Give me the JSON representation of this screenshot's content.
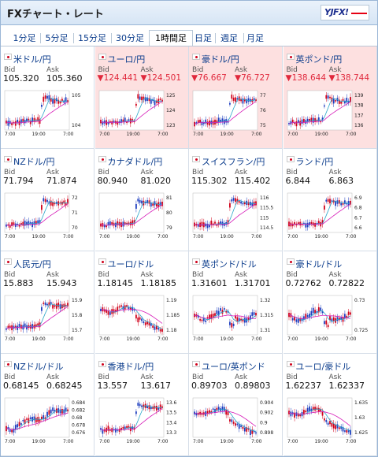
{
  "header": {
    "title": "FXチャート・レート",
    "logo_text": "YJFX!"
  },
  "tabs": [
    {
      "label": "1分足",
      "active": false
    },
    {
      "label": "5分足",
      "active": false
    },
    {
      "label": "15分足",
      "active": false
    },
    {
      "label": "30分足",
      "active": false
    },
    {
      "label": "1時間足",
      "active": true
    },
    {
      "label": "日足",
      "active": false
    },
    {
      "label": "週足",
      "active": false
    },
    {
      "label": "月足",
      "active": false
    }
  ],
  "labels": {
    "bid": "Bid",
    "ask": "Ask"
  },
  "colors": {
    "up": "#d0021b",
    "down": "#1f3fbf",
    "ma_short": "#2aa6c9",
    "ma_long": "#d61ab8",
    "highlight": "#fde0e0",
    "down_text": "#e0283c"
  },
  "pairs": [
    {
      "name": "米ドル/円",
      "bid": "105.320",
      "ask": "105.360",
      "change": "flat",
      "y_ticks": [
        "105",
        "104"
      ],
      "x_ticks": [
        "7:00",
        "19:00",
        "7:00"
      ],
      "shape": "jump"
    },
    {
      "name": "ユーロ/円",
      "bid": "▼124.441",
      "ask": "▼124.501",
      "change": "down",
      "y_ticks": [
        "125",
        "124",
        "123"
      ],
      "x_ticks": [
        "7:00",
        "19:00",
        "7:00"
      ],
      "shape": "jump"
    },
    {
      "name": "豪ドル/円",
      "bid": "▼76.667",
      "ask": "▼76.727",
      "change": "down",
      "y_ticks": [
        "77",
        "76",
        "75"
      ],
      "x_ticks": [
        "7:00",
        "19:00",
        "7:00"
      ],
      "shape": "jump"
    },
    {
      "name": "英ポンド/円",
      "bid": "▼138.644",
      "ask": "▼138.744",
      "change": "down",
      "y_ticks": [
        "139",
        "138",
        "137",
        "136"
      ],
      "x_ticks": [
        "7:00",
        "19:00",
        "7:00"
      ],
      "shape": "jump"
    },
    {
      "name": "NZドル/円",
      "bid": "71.794",
      "ask": "71.874",
      "change": "flat",
      "y_ticks": [
        "72",
        "71",
        "70"
      ],
      "x_ticks": [
        "7:00",
        "19:00",
        "7:00"
      ],
      "shape": "jump"
    },
    {
      "name": "カナダドル/円",
      "bid": "80.940",
      "ask": "81.020",
      "change": "flat",
      "y_ticks": [
        "81",
        "80",
        "79"
      ],
      "x_ticks": [
        "7:00",
        "19:00",
        "7:00"
      ],
      "shape": "jump"
    },
    {
      "name": "スイスフラン/円",
      "bid": "115.302",
      "ask": "115.402",
      "change": "flat",
      "y_ticks": [
        "116",
        "115.5",
        "115",
        "114.5"
      ],
      "x_ticks": [
        "7:00",
        "19:00",
        "7:00"
      ],
      "shape": "jump"
    },
    {
      "name": "ランド/円",
      "bid": "6.844",
      "ask": "6.863",
      "change": "flat",
      "y_ticks": [
        "6.9",
        "6.8",
        "6.7",
        "6.6"
      ],
      "x_ticks": [
        "7:00",
        "19:00",
        "7:00"
      ],
      "shape": "jump"
    },
    {
      "name": "人民元/円",
      "bid": "15.883",
      "ask": "15.943",
      "change": "flat",
      "y_ticks": [
        "15.9",
        "15.8",
        "15.7"
      ],
      "x_ticks": [
        "7:00",
        "19:00",
        "7:00"
      ],
      "shape": "jump"
    },
    {
      "name": "ユーロ/ドル",
      "bid": "1.18145",
      "ask": "1.18185",
      "change": "flat",
      "y_ticks": [
        "1.19",
        "1.185",
        "1.18"
      ],
      "x_ticks": [
        "7:00",
        "19:00",
        "7:00"
      ],
      "shape": "drop"
    },
    {
      "name": "英ポンド/ドル",
      "bid": "1.31601",
      "ask": "1.31701",
      "change": "flat",
      "y_ticks": [
        "1.32",
        "1.315",
        "1.31"
      ],
      "x_ticks": [
        "7:00",
        "19:00",
        "7:00"
      ],
      "shape": "range"
    },
    {
      "name": "豪ドル/ドル",
      "bid": "0.72762",
      "ask": "0.72822",
      "change": "flat",
      "y_ticks": [
        "0.73",
        "0.725"
      ],
      "x_ticks": [
        "7:00",
        "19:00",
        "7:00"
      ],
      "shape": "range"
    },
    {
      "name": "NZドル/ドル",
      "bid": "0.68145",
      "ask": "0.68245",
      "change": "flat",
      "y_ticks": [
        "0.684",
        "0.682",
        "0.68",
        "0.678",
        "0.676"
      ],
      "x_ticks": [
        "7:00",
        "19:00",
        "7:00"
      ],
      "shape": "rise"
    },
    {
      "name": "香港ドル/円",
      "bid": "13.557",
      "ask": "13.617",
      "change": "flat",
      "y_ticks": [
        "13.6",
        "13.5",
        "13.4",
        "13.3"
      ],
      "x_ticks": [
        "7:00",
        "19:00",
        "7:00"
      ],
      "shape": "jump"
    },
    {
      "name": "ユーロ/英ポンド",
      "bid": "0.89703",
      "ask": "0.89803",
      "change": "flat",
      "y_ticks": [
        "0.904",
        "0.902",
        "0.9",
        "0.898"
      ],
      "x_ticks": [
        "7:00",
        "19:00",
        "7:00"
      ],
      "shape": "drop"
    },
    {
      "name": "ユーロ/豪ドル",
      "bid": "1.62237",
      "ask": "1.62337",
      "change": "flat",
      "y_ticks": [
        "1.635",
        "1.63",
        "1.625"
      ],
      "x_ticks": [
        "7:00",
        "19:00",
        "7:00"
      ],
      "shape": "drop"
    }
  ]
}
